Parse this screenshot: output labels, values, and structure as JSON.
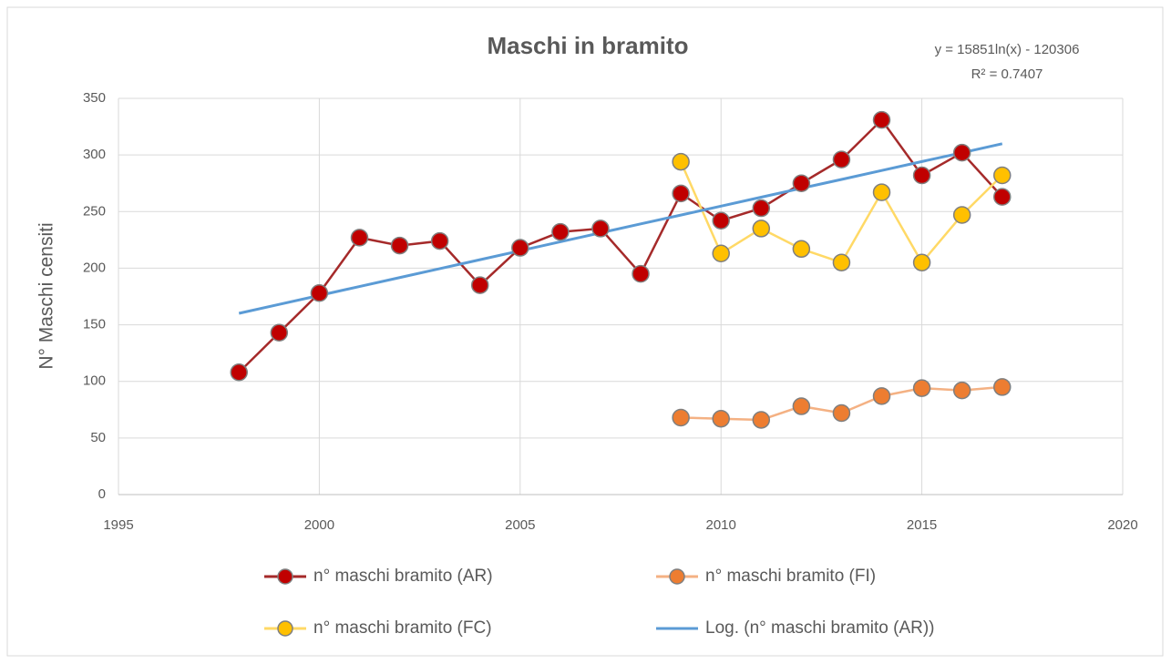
{
  "chart_data": {
    "type": "line",
    "title": "Maschi in bramito",
    "y_label": "N° Maschi censiti",
    "annotations": [
      "y = 15851ln(x) - 120306",
      "R² = 0.7407"
    ],
    "xlim": [
      1995,
      2020
    ],
    "xticks": [
      1995,
      2000,
      2005,
      2010,
      2015,
      2020
    ],
    "ylim": [
      0,
      350
    ],
    "yticks": [
      0,
      50,
      100,
      150,
      200,
      250,
      300,
      350
    ],
    "grid": true,
    "legend": "bottom",
    "series": [
      {
        "name": "n° maschi bramito (AR)",
        "color": "#c00000",
        "line_color": "#a52a2a",
        "marker": true,
        "x": [
          1998,
          1999,
          2000,
          2001,
          2002,
          2003,
          2004,
          2005,
          2006,
          2007,
          2008,
          2009,
          2010,
          2011,
          2012,
          2013,
          2014,
          2015,
          2016,
          2017
        ],
        "values": [
          108,
          143,
          178,
          227,
          220,
          224,
          185,
          218,
          232,
          235,
          195,
          266,
          242,
          253,
          275,
          296,
          331,
          282,
          302,
          263
        ]
      },
      {
        "name": "n° maschi bramito (FI)",
        "color": "#ed7d31",
        "line_color": "#f4b183",
        "marker": true,
        "x": [
          2009,
          2010,
          2011,
          2012,
          2013,
          2014,
          2015,
          2016,
          2017
        ],
        "values": [
          68,
          67,
          66,
          78,
          72,
          87,
          94,
          92,
          95
        ]
      },
      {
        "name": "n° maschi bramito (FC)",
        "color": "#ffc000",
        "line_color": "#ffd966",
        "marker": true,
        "x": [
          2009,
          2010,
          2011,
          2012,
          2013,
          2014,
          2015,
          2016,
          2017
        ],
        "values": [
          294,
          213,
          235,
          217,
          205,
          267,
          205,
          247,
          282
        ]
      },
      {
        "name": "Log. (n° maschi bramito (AR))",
        "color": "#5b9bd5",
        "line_color": "#5b9bd5",
        "marker": false,
        "x": [
          1998,
          1999,
          2000,
          2001,
          2002,
          2003,
          2004,
          2005,
          2006,
          2007,
          2008,
          2009,
          2010,
          2011,
          2012,
          2013,
          2014,
          2015,
          2016,
          2017
        ],
        "values": [
          160.1,
          168.0,
          175.9,
          183.8,
          191.7,
          199.6,
          207.5,
          215.4,
          223.3,
          231.2,
          239.1,
          246.9,
          254.8,
          262.7,
          270.6,
          278.4,
          286.3,
          294.2,
          302.0,
          309.9
        ]
      }
    ]
  }
}
